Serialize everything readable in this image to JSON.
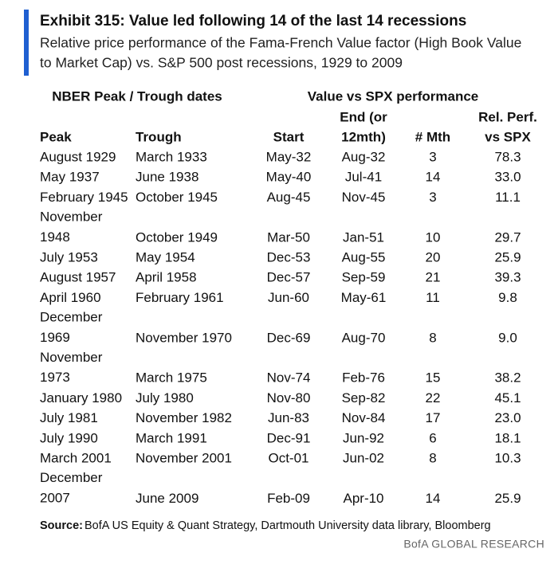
{
  "header": {
    "title": "Exhibit 315: Value led following 14 of the last 14 recessions",
    "subtitle": [
      "Relative price performance of the Fama-French Value factor (High Book Value",
      "to Market Cap) vs. S&P 500 post recessions, 1929 to 2009"
    ]
  },
  "table": {
    "groups": [
      "NBER Peak / Trough dates",
      "Value vs SPX performance"
    ],
    "columns": [
      [
        "Peak"
      ],
      [
        "Trough"
      ],
      [
        "Start"
      ],
      [
        "End (or",
        "12mth)"
      ],
      [
        "# Mth"
      ],
      [
        "Rel. Perf.",
        "vs SPX"
      ]
    ],
    "rows": [
      [
        "August 1929",
        "March 1933",
        "May-32",
        "Aug-32",
        "3",
        "78.3"
      ],
      [
        "May 1937",
        "June 1938",
        "May-40",
        "Jul-41",
        "14",
        "33.0"
      ],
      [
        "February 1945",
        "October 1945",
        "Aug-45",
        "Nov-45",
        "3",
        "11.1"
      ],
      [
        "November 1948",
        "October 1949",
        "Mar-50",
        "Jan-51",
        "10",
        "29.7"
      ],
      [
        "July 1953",
        "May 1954",
        "Dec-53",
        "Aug-55",
        "20",
        "25.9"
      ],
      [
        "August 1957",
        "April 1958",
        "Dec-57",
        "Sep-59",
        "21",
        "39.3"
      ],
      [
        "April 1960",
        "February 1961",
        "Jun-60",
        "May-61",
        "11",
        "9.8"
      ],
      [
        "December 1969",
        "November 1970",
        "Dec-69",
        "Aug-70",
        "8",
        "9.0"
      ],
      [
        "November 1973",
        "March 1975",
        "Nov-74",
        "Feb-76",
        "15",
        "38.2"
      ],
      [
        "January 1980",
        "July 1980",
        "Nov-80",
        "Sep-82",
        "22",
        "45.1"
      ],
      [
        "July 1981",
        "November 1982",
        "Jun-83",
        "Nov-84",
        "17",
        "23.0"
      ],
      [
        "July 1990",
        "March 1991",
        "Dec-91",
        "Jun-92",
        "6",
        "18.1"
      ],
      [
        "March 2001",
        "November 2001",
        "Oct-01",
        "Jun-02",
        "8",
        "10.3"
      ],
      [
        "December 2007",
        "June 2009",
        "Feb-09",
        "Apr-10",
        "14",
        "25.9"
      ]
    ]
  },
  "footer": {
    "source_label": "Source:",
    "source_text": "BofA US Equity & Quant Strategy, Dartmouth University data library, Bloomberg",
    "brand": "BofA GLOBAL RESEARCH"
  }
}
